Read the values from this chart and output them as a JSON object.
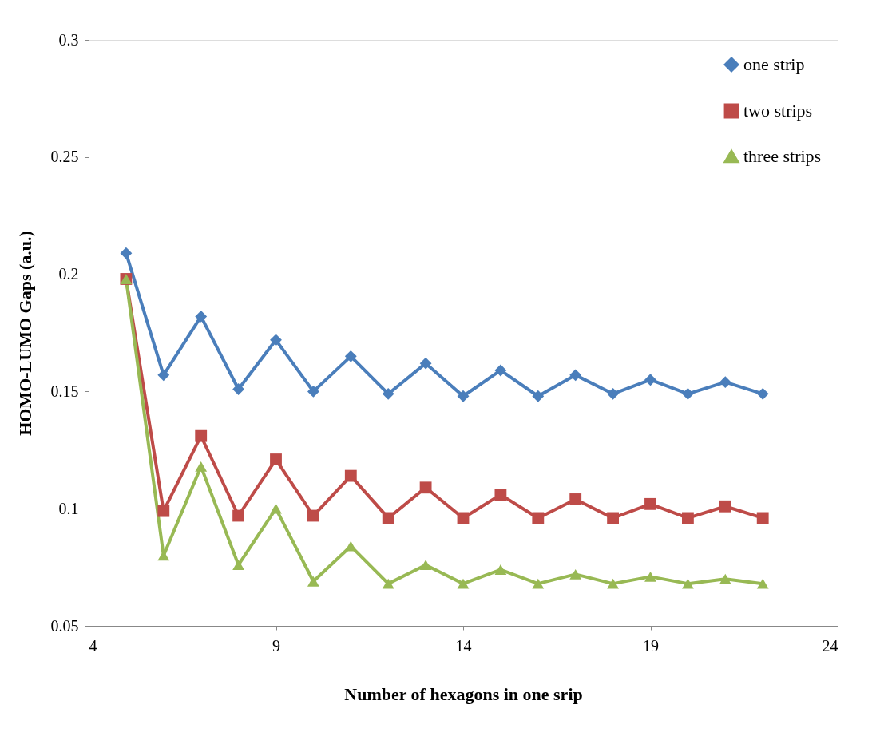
{
  "chart_data": {
    "type": "line",
    "xlabel": "Number of hexagons in one srip",
    "ylabel": "HOMO-LUMO Gaps (a.u.)",
    "x": [
      5,
      6,
      7,
      8,
      9,
      10,
      11,
      12,
      13,
      14,
      15,
      16,
      17,
      18,
      19,
      20,
      21,
      22
    ],
    "series": [
      {
        "name": "one strip",
        "color": "#4a7ebb",
        "marker": "diamond",
        "values": [
          0.209,
          0.157,
          0.182,
          0.151,
          0.172,
          0.15,
          0.165,
          0.149,
          0.162,
          0.148,
          0.159,
          0.148,
          0.157,
          0.149,
          0.155,
          0.149,
          0.154,
          0.149
        ]
      },
      {
        "name": "two strips",
        "color": "#be4b48",
        "marker": "square",
        "values": [
          0.198,
          0.099,
          0.131,
          0.097,
          0.121,
          0.097,
          0.114,
          0.096,
          0.109,
          0.096,
          0.106,
          0.096,
          0.104,
          0.096,
          0.102,
          0.096,
          0.101,
          0.096
        ]
      },
      {
        "name": "three strips",
        "color": "#98b954",
        "marker": "triangle",
        "values": [
          0.198,
          0.08,
          0.118,
          0.076,
          0.1,
          0.069,
          0.084,
          0.068,
          0.076,
          0.068,
          0.074,
          0.068,
          0.072,
          0.068,
          0.071,
          0.068,
          0.07,
          0.068
        ]
      }
    ],
    "xlim": [
      4,
      24
    ],
    "xticks": [
      4,
      9,
      14,
      19,
      24
    ],
    "ylim": [
      0.05,
      0.3
    ],
    "yticks": [
      0.05,
      0.1,
      0.15,
      0.2,
      0.25,
      0.3
    ],
    "grid": false,
    "legend": "top right",
    "line_style": "solid"
  }
}
